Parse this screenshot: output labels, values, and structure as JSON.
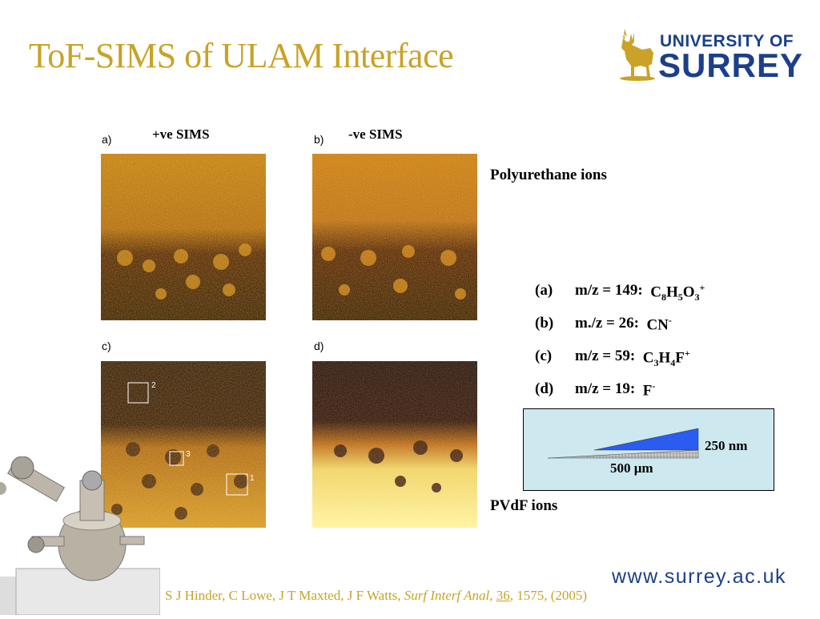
{
  "title": "ToF-SIMS of ULAM Interface",
  "logo": {
    "line1": "UNIVERSITY OF",
    "line2": "SURREY"
  },
  "panels": {
    "a": {
      "label": "a)",
      "heading": "+ve SIMS"
    },
    "b": {
      "label": "b)",
      "heading": "-ve SIMS"
    },
    "c": {
      "label": "c)",
      "roi": [
        "2",
        "3",
        "1"
      ]
    },
    "d": {
      "label": "d)"
    }
  },
  "polyurethane_label": "Polyurethane ions",
  "pvdf_label": "PVdF ions",
  "ions": [
    {
      "letter": "(a)",
      "prefix": "m/z = 149:  ",
      "formula": [
        [
          "C",
          "8"
        ],
        [
          "H",
          "5"
        ],
        [
          "O",
          "3"
        ]
      ],
      "charge": "+"
    },
    {
      "letter": "(b)",
      "prefix": "m./z = 26:  ",
      "formula": [
        [
          "CN",
          ""
        ]
      ],
      "charge": "-"
    },
    {
      "letter": "(c)",
      "prefix": "m/z = 59:  ",
      "formula": [
        [
          "C",
          "3"
        ],
        [
          "H",
          "4"
        ],
        [
          "F",
          ""
        ]
      ],
      "charge": "+"
    },
    {
      "letter": "(d)",
      "prefix": "m/z = 19:  ",
      "formula": [
        [
          "F",
          ""
        ]
      ],
      "charge": "-"
    }
  ],
  "diagram": {
    "height_label": "250 nm",
    "length_label": "500 μm"
  },
  "url": "www.surrey.ac.uk",
  "citation": {
    "authors": "S J Hinder, C Lowe, J T Maxted, J F Watts, ",
    "journal": "Surf Interf Anal,",
    "volume": "36",
    "rest": ", 1575, (2005)"
  },
  "colors": {
    "title": "#c9a227",
    "brand_blue": "#1b3f8b",
    "diagram_bg": "#cde9ef",
    "wedge_blue": "#2a5cf0"
  }
}
